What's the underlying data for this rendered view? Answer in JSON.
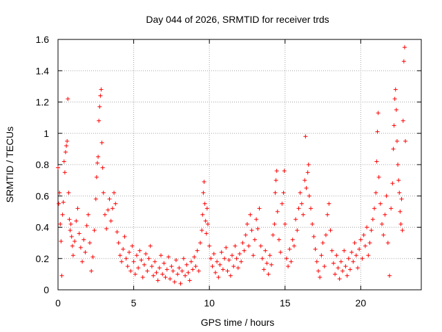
{
  "chart_data": {
    "type": "scatter",
    "title": "Day 044 of 2026, SRMTID for receiver trds",
    "xlabel": "GPS time / hours",
    "ylabel": "SRMTID / TECUs",
    "xlim": [
      0,
      24
    ],
    "ylim": [
      0,
      1.6
    ],
    "xticks": [
      0,
      5,
      10,
      15,
      20
    ],
    "xtick_labels": [
      "0",
      "5",
      "10",
      "15",
      "20"
    ],
    "yticks": [
      0,
      0.2,
      0.4,
      0.6,
      0.8,
      1.0,
      1.2,
      1.4,
      1.6
    ],
    "ytick_labels": [
      "0",
      "0.2",
      "0.4",
      "0.6",
      "0.8",
      "1",
      "1.2",
      "1.4",
      "1.6"
    ],
    "grid": true,
    "marker": "+",
    "color": "#ff0000",
    "series": [
      {
        "name": "SRMTID",
        "points": [
          [
            0.0,
            0.78
          ],
          [
            0.05,
            0.55
          ],
          [
            0.1,
            0.62
          ],
          [
            0.15,
            0.42
          ],
          [
            0.2,
            0.31
          ],
          [
            0.25,
            0.09
          ],
          [
            0.3,
            0.48
          ],
          [
            0.35,
            0.56
          ],
          [
            0.4,
            0.82
          ],
          [
            0.45,
            0.75
          ],
          [
            0.5,
            0.88
          ],
          [
            0.55,
            0.92
          ],
          [
            0.6,
            0.95
          ],
          [
            0.65,
            1.22
          ],
          [
            0.7,
            0.62
          ],
          [
            0.75,
            0.45
          ],
          [
            0.8,
            0.38
          ],
          [
            0.85,
            0.42
          ],
          [
            0.9,
            0.34
          ],
          [
            0.95,
            0.28
          ],
          [
            1.0,
            0.22
          ],
          [
            1.1,
            0.31
          ],
          [
            1.2,
            0.44
          ],
          [
            1.3,
            0.52
          ],
          [
            1.4,
            0.36
          ],
          [
            1.5,
            0.27
          ],
          [
            1.6,
            0.18
          ],
          [
            1.7,
            0.32
          ],
          [
            1.8,
            0.24
          ],
          [
            1.9,
            0.41
          ],
          [
            2.0,
            0.48
          ],
          [
            2.1,
            0.3
          ],
          [
            2.2,
            0.12
          ],
          [
            2.3,
            0.21
          ],
          [
            2.4,
            0.38
          ],
          [
            2.5,
            0.58
          ],
          [
            2.55,
            0.72
          ],
          [
            2.6,
            0.81
          ],
          [
            2.65,
            0.85
          ],
          [
            2.7,
            1.08
          ],
          [
            2.75,
            1.17
          ],
          [
            2.8,
            1.24
          ],
          [
            2.85,
            1.28
          ],
          [
            2.9,
            0.94
          ],
          [
            2.95,
            0.78
          ],
          [
            3.0,
            0.62
          ],
          [
            3.1,
            0.48
          ],
          [
            3.2,
            0.39
          ],
          [
            3.3,
            0.51
          ],
          [
            3.4,
            0.58
          ],
          [
            3.5,
            0.44
          ],
          [
            3.6,
            0.52
          ],
          [
            3.7,
            0.62
          ],
          [
            3.8,
            0.55
          ],
          [
            3.9,
            0.37
          ],
          [
            4.0,
            0.3
          ],
          [
            4.1,
            0.22
          ],
          [
            4.2,
            0.18
          ],
          [
            4.3,
            0.26
          ],
          [
            4.4,
            0.34
          ],
          [
            4.5,
            0.2
          ],
          [
            4.6,
            0.15
          ],
          [
            4.7,
            0.24
          ],
          [
            4.8,
            0.12
          ],
          [
            4.9,
            0.28
          ],
          [
            5.0,
            0.18
          ],
          [
            5.1,
            0.1
          ],
          [
            5.2,
            0.22
          ],
          [
            5.3,
            0.14
          ],
          [
            5.4,
            0.25
          ],
          [
            5.5,
            0.19
          ],
          [
            5.6,
            0.08
          ],
          [
            5.7,
            0.16
          ],
          [
            5.8,
            0.23
          ],
          [
            5.9,
            0.12
          ],
          [
            6.0,
            0.2
          ],
          [
            6.1,
            0.28
          ],
          [
            6.2,
            0.15
          ],
          [
            6.3,
            0.09
          ],
          [
            6.4,
            0.18
          ],
          [
            6.5,
            0.11
          ],
          [
            6.6,
            0.06
          ],
          [
            6.7,
            0.14
          ],
          [
            6.8,
            0.22
          ],
          [
            6.9,
            0.1
          ],
          [
            7.0,
            0.17
          ],
          [
            7.1,
            0.08
          ],
          [
            7.2,
            0.13
          ],
          [
            7.3,
            0.21
          ],
          [
            7.4,
            0.07
          ],
          [
            7.5,
            0.15
          ],
          [
            7.6,
            0.12
          ],
          [
            7.7,
            0.05
          ],
          [
            7.8,
            0.19
          ],
          [
            7.9,
            0.1
          ],
          [
            8.0,
            0.14
          ],
          [
            8.1,
            0.04
          ],
          [
            8.2,
            0.12
          ],
          [
            8.3,
            0.2
          ],
          [
            8.4,
            0.09
          ],
          [
            8.5,
            0.16
          ],
          [
            8.6,
            0.11
          ],
          [
            8.7,
            0.06
          ],
          [
            8.8,
            0.18
          ],
          [
            8.9,
            0.13
          ],
          [
            9.0,
            0.21
          ],
          [
            9.1,
            0.15
          ],
          [
            9.2,
            0.25
          ],
          [
            9.3,
            0.12
          ],
          [
            9.4,
            0.3
          ],
          [
            9.5,
            0.38
          ],
          [
            9.55,
            0.48
          ],
          [
            9.6,
            0.62
          ],
          [
            9.65,
            0.69
          ],
          [
            9.7,
            0.55
          ],
          [
            9.75,
            0.44
          ],
          [
            9.8,
            0.36
          ],
          [
            9.85,
            0.52
          ],
          [
            9.9,
            0.42
          ],
          [
            10.0,
            0.28
          ],
          [
            10.1,
            0.2
          ],
          [
            10.2,
            0.15
          ],
          [
            10.3,
            0.23
          ],
          [
            10.4,
            0.11
          ],
          [
            10.5,
            0.18
          ],
          [
            10.6,
            0.08
          ],
          [
            10.7,
            0.16
          ],
          [
            10.8,
            0.24
          ],
          [
            10.9,
            0.13
          ],
          [
            11.0,
            0.2
          ],
          [
            11.1,
            0.27
          ],
          [
            11.2,
            0.12
          ],
          [
            11.3,
            0.19
          ],
          [
            11.4,
            0.09
          ],
          [
            11.5,
            0.22
          ],
          [
            11.6,
            0.15
          ],
          [
            11.7,
            0.28
          ],
          [
            11.8,
            0.2
          ],
          [
            11.9,
            0.14
          ],
          [
            12.0,
            0.23
          ],
          [
            12.1,
            0.18
          ],
          [
            12.2,
            0.3
          ],
          [
            12.3,
            0.25
          ],
          [
            12.4,
            0.35
          ],
          [
            12.5,
            0.42
          ],
          [
            12.6,
            0.28
          ],
          [
            12.7,
            0.48
          ],
          [
            12.8,
            0.38
          ],
          [
            12.9,
            0.22
          ],
          [
            13.0,
            0.32
          ],
          [
            13.1,
            0.45
          ],
          [
            13.2,
            0.39
          ],
          [
            13.3,
            0.52
          ],
          [
            13.4,
            0.28
          ],
          [
            13.5,
            0.2
          ],
          [
            13.6,
            0.13
          ],
          [
            13.7,
            0.25
          ],
          [
            13.8,
            0.17
          ],
          [
            13.9,
            0.1
          ],
          [
            14.0,
            0.22
          ],
          [
            14.1,
            0.16
          ],
          [
            14.2,
            0.35
          ],
          [
            14.3,
            0.42
          ],
          [
            14.35,
            0.62
          ],
          [
            14.4,
            0.7
          ],
          [
            14.45,
            0.76
          ],
          [
            14.5,
            0.5
          ],
          [
            14.6,
            0.32
          ],
          [
            14.7,
            0.24
          ],
          [
            14.8,
            0.55
          ],
          [
            14.9,
            0.62
          ],
          [
            14.95,
            0.76
          ],
          [
            15.0,
            0.42
          ],
          [
            15.1,
            0.2
          ],
          [
            15.2,
            0.15
          ],
          [
            15.3,
            0.26
          ],
          [
            15.4,
            0.18
          ],
          [
            15.5,
            0.32
          ],
          [
            15.6,
            0.28
          ],
          [
            15.7,
            0.45
          ],
          [
            15.8,
            0.38
          ],
          [
            15.9,
            0.52
          ],
          [
            16.0,
            0.62
          ],
          [
            16.1,
            0.55
          ],
          [
            16.2,
            0.48
          ],
          [
            16.3,
            0.7
          ],
          [
            16.35,
            0.98
          ],
          [
            16.4,
            0.65
          ],
          [
            16.5,
            0.75
          ],
          [
            16.55,
            0.8
          ],
          [
            16.6,
            0.6
          ],
          [
            16.7,
            0.52
          ],
          [
            16.8,
            0.42
          ],
          [
            16.9,
            0.34
          ],
          [
            17.0,
            0.26
          ],
          [
            17.1,
            0.18
          ],
          [
            17.2,
            0.12
          ],
          [
            17.3,
            0.08
          ],
          [
            17.4,
            0.22
          ],
          [
            17.5,
            0.3
          ],
          [
            17.6,
            0.15
          ],
          [
            17.7,
            0.35
          ],
          [
            17.8,
            0.48
          ],
          [
            17.9,
            0.55
          ],
          [
            18.0,
            0.38
          ],
          [
            18.1,
            0.25
          ],
          [
            18.2,
            0.17
          ],
          [
            18.3,
            0.1
          ],
          [
            18.4,
            0.22
          ],
          [
            18.5,
            0.14
          ],
          [
            18.6,
            0.07
          ],
          [
            18.7,
            0.18
          ],
          [
            18.8,
            0.12
          ],
          [
            18.9,
            0.25
          ],
          [
            19.0,
            0.15
          ],
          [
            19.1,
            0.09
          ],
          [
            19.2,
            0.2
          ],
          [
            19.3,
            0.13
          ],
          [
            19.4,
            0.24
          ],
          [
            19.5,
            0.18
          ],
          [
            19.6,
            0.3
          ],
          [
            19.7,
            0.22
          ],
          [
            19.8,
            0.14
          ],
          [
            19.9,
            0.26
          ],
          [
            20.0,
            0.32
          ],
          [
            20.1,
            0.2
          ],
          [
            20.2,
            0.35
          ],
          [
            20.3,
            0.28
          ],
          [
            20.4,
            0.4
          ],
          [
            20.5,
            0.22
          ],
          [
            20.6,
            0.3
          ],
          [
            20.7,
            0.38
          ],
          [
            20.8,
            0.45
          ],
          [
            20.9,
            0.52
          ],
          [
            21.0,
            0.62
          ],
          [
            21.05,
            0.82
          ],
          [
            21.1,
            1.01
          ],
          [
            21.15,
            1.13
          ],
          [
            21.2,
            0.72
          ],
          [
            21.3,
            0.55
          ],
          [
            21.4,
            0.42
          ],
          [
            21.5,
            0.35
          ],
          [
            21.6,
            0.48
          ],
          [
            21.7,
            0.6
          ],
          [
            21.8,
            0.3
          ],
          [
            21.9,
            0.09
          ],
          [
            22.0,
            0.52
          ],
          [
            22.1,
            0.68
          ],
          [
            22.15,
            0.9
          ],
          [
            22.2,
            1.05
          ],
          [
            22.25,
            1.22
          ],
          [
            22.3,
            1.28
          ],
          [
            22.35,
            1.15
          ],
          [
            22.4,
            0.95
          ],
          [
            22.45,
            0.8
          ],
          [
            22.5,
            0.7
          ],
          [
            22.55,
            0.62
          ],
          [
            22.6,
            0.5
          ],
          [
            22.65,
            0.42
          ],
          [
            22.7,
            0.58
          ],
          [
            22.75,
            0.38
          ],
          [
            22.8,
            1.08
          ],
          [
            22.85,
            1.46
          ],
          [
            22.9,
            1.55
          ],
          [
            22.95,
            0.95
          ]
        ]
      }
    ]
  }
}
